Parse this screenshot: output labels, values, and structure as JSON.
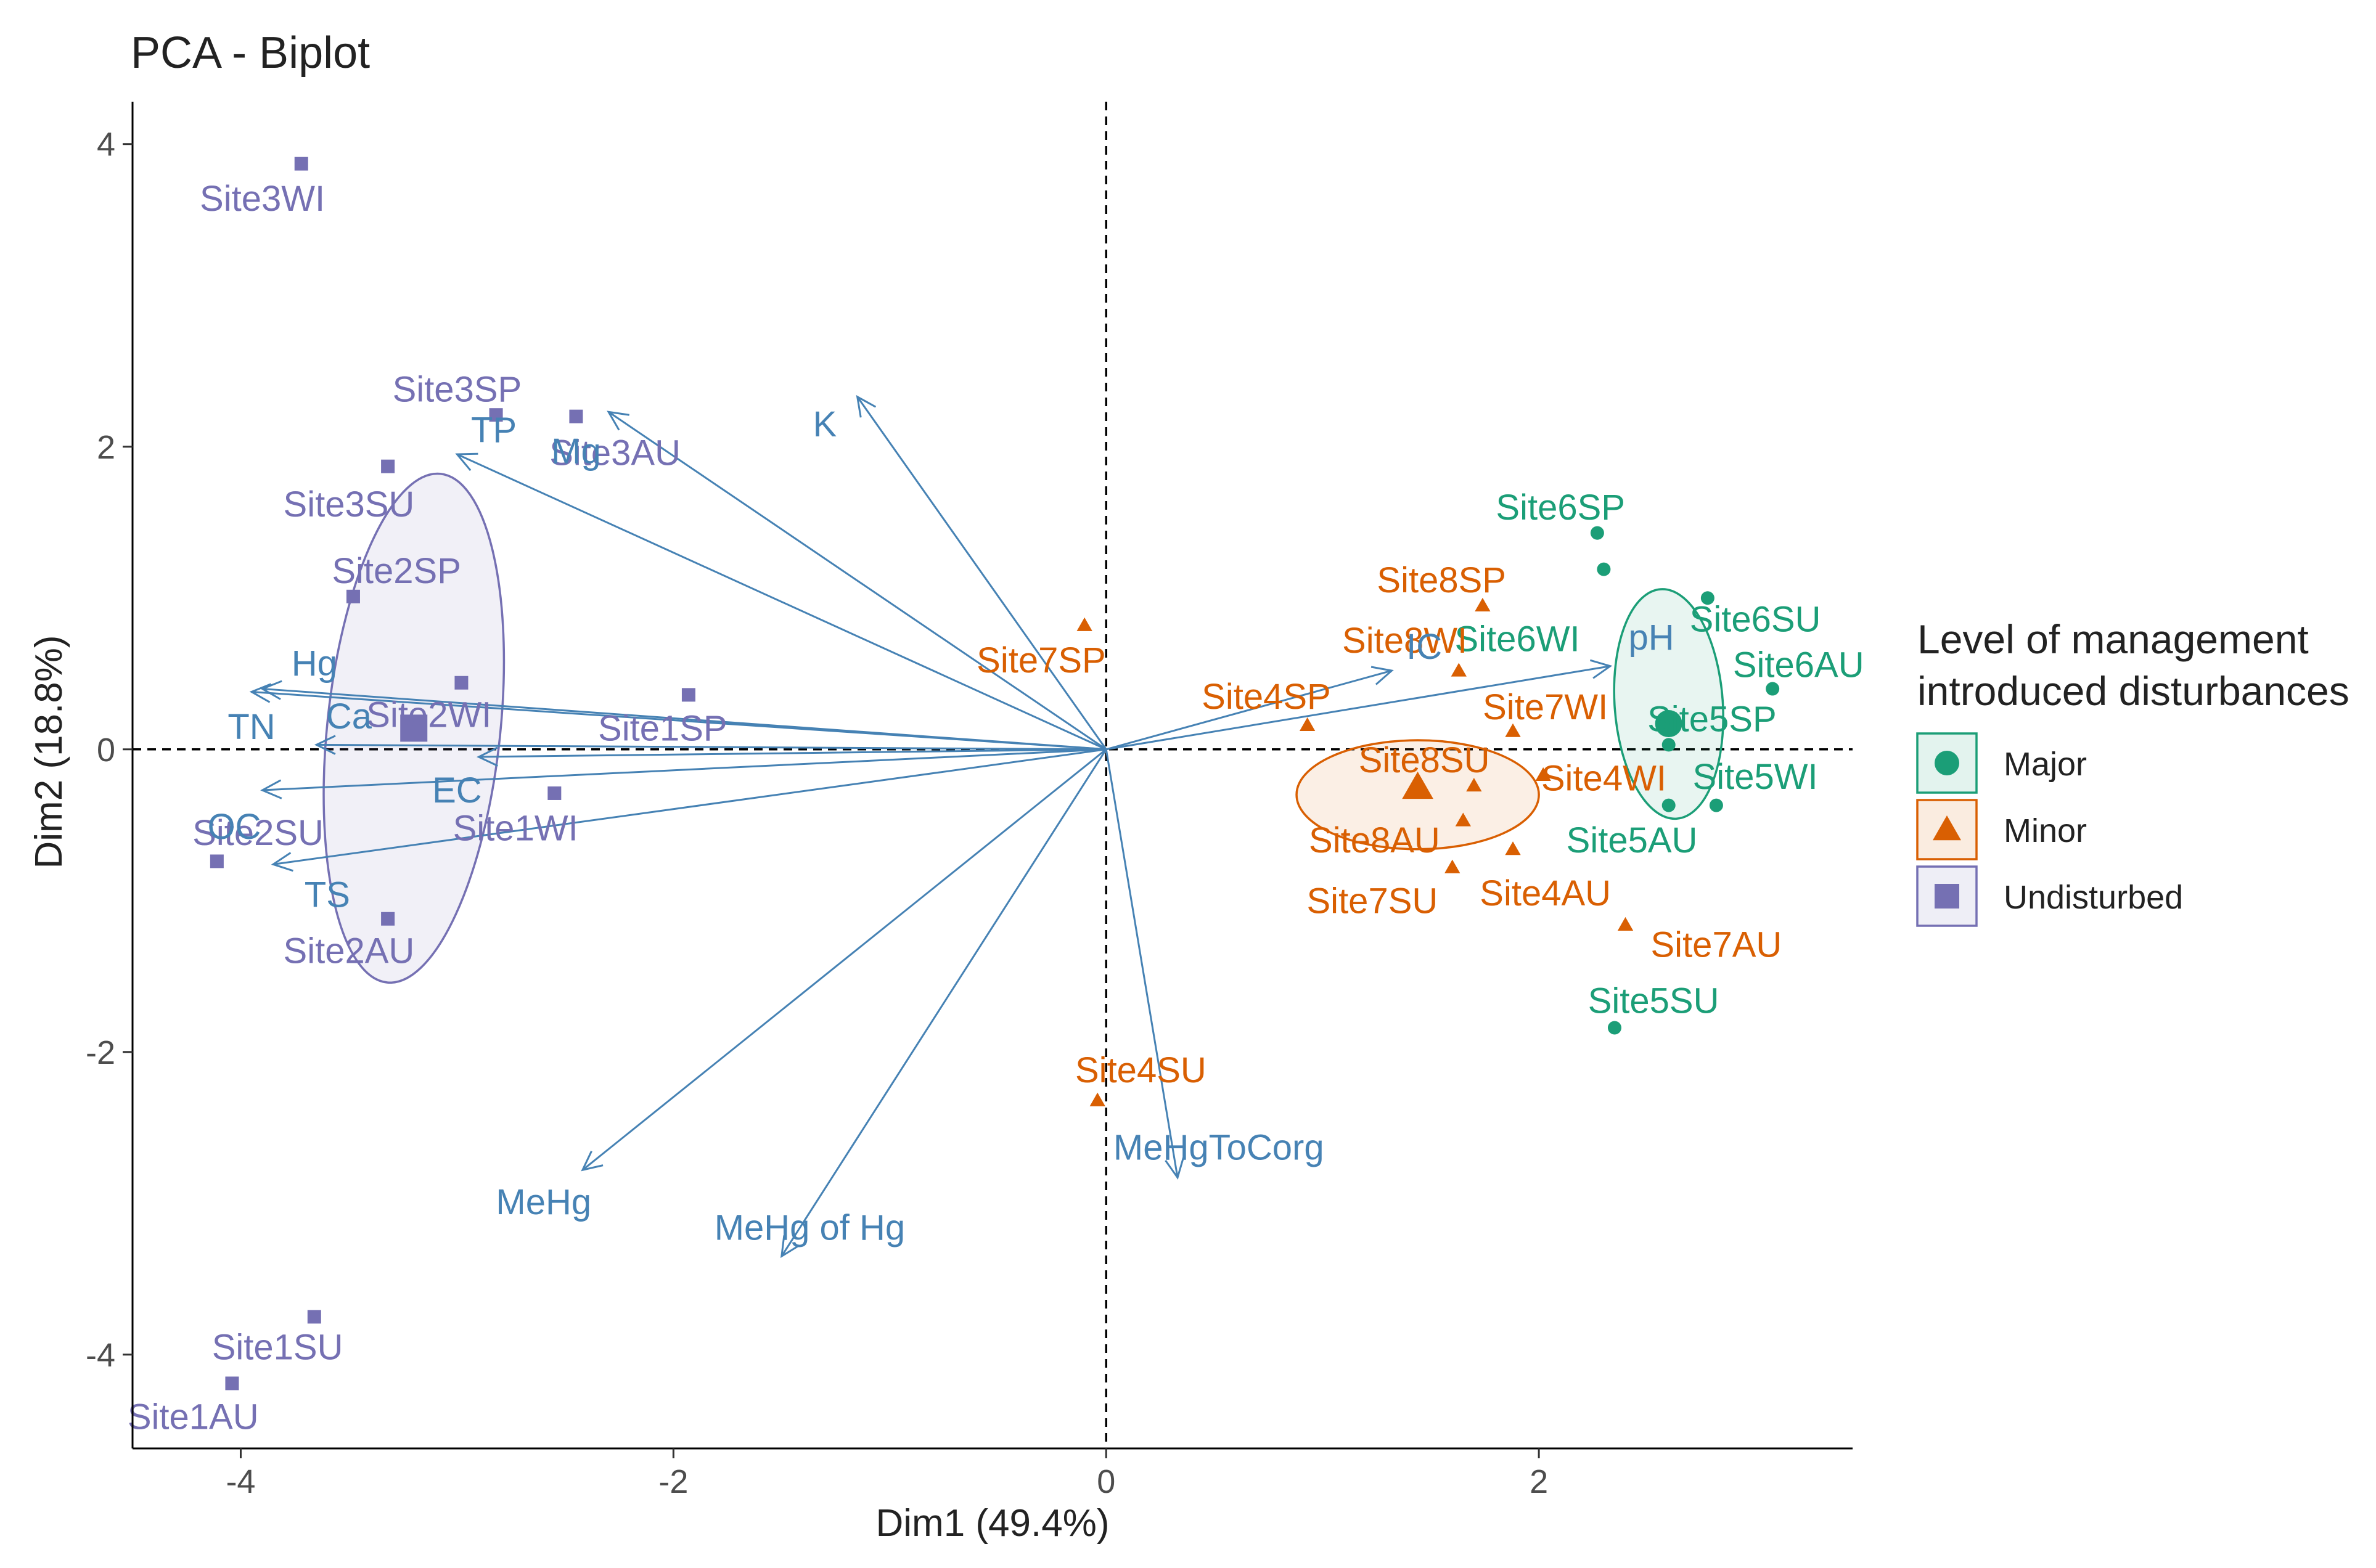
{
  "chart_data": {
    "type": "scatter",
    "title": "PCA - Biplot",
    "xlabel": "Dim1 (49.4%)",
    "ylabel": "Dim2 (18.8%)",
    "xlim": [
      -4.5,
      3.45
    ],
    "ylim": [
      -4.62,
      4.28
    ],
    "xticks": [
      -4,
      -2,
      0,
      2
    ],
    "yticks": [
      -4,
      -2,
      0,
      2,
      4
    ],
    "grid": false,
    "legend_position": "right",
    "legend": {
      "title_lines": [
        "Level of management",
        "introduced disturbances"
      ],
      "entries": [
        {
          "name": "Major",
          "color": "#1b9e77",
          "shape": "circle"
        },
        {
          "name": "Minor",
          "color": "#d95f02",
          "shape": "triangle"
        },
        {
          "name": "Undisturbed",
          "color": "#7570b3",
          "shape": "square"
        }
      ]
    },
    "groups": [
      {
        "name": "Major",
        "color": "#1b9e77",
        "shape": "circle",
        "centroid": [
          2.6,
          0.17
        ],
        "ellipse": {
          "center": [
            2.6,
            0.3
          ],
          "rx": 0.25,
          "ry": 0.76,
          "angle": -4
        },
        "points": [
          {
            "label": "Site6SP",
            "x": 2.27,
            "y": 1.43,
            "lx": 2.1,
            "ly": 1.6
          },
          {
            "label": "Site6WI",
            "x": 2.3,
            "y": 1.19,
            "lx": 1.9,
            "ly": 0.73
          },
          {
            "label": "Site6SU",
            "x": 2.78,
            "y": 1.0,
            "lx": 3.0,
            "ly": 0.86
          },
          {
            "label": "Site6AU",
            "x": 3.08,
            "y": 0.4,
            "lx": 3.2,
            "ly": 0.56
          },
          {
            "label": "Site5SP",
            "x": 2.6,
            "y": 0.03,
            "lx": 2.8,
            "ly": 0.2
          },
          {
            "label": "Site5WI",
            "x": 2.82,
            "y": -0.37,
            "lx": 3.0,
            "ly": -0.18
          },
          {
            "label": "Site5AU",
            "x": 2.6,
            "y": -0.37,
            "lx": 2.43,
            "ly": -0.6
          },
          {
            "label": "Site5SU",
            "x": 2.35,
            "y": -1.84,
            "lx": 2.53,
            "ly": -1.66
          }
        ]
      },
      {
        "name": "Minor",
        "color": "#d95f02",
        "shape": "triangle",
        "centroid": [
          1.44,
          -0.25
        ],
        "ellipse": {
          "center": [
            1.44,
            -0.3
          ],
          "rx": 0.56,
          "ry": 0.36,
          "angle": 0
        },
        "points": [
          {
            "label": "Site7SP",
            "x": -0.1,
            "y": 0.82,
            "lx": -0.3,
            "ly": 0.59
          },
          {
            "label": "Site8SP",
            "x": 1.74,
            "y": 0.95,
            "lx": 1.55,
            "ly": 1.12
          },
          {
            "label": "Site8WI",
            "x": 1.63,
            "y": 0.52,
            "lx": 1.38,
            "ly": 0.72
          },
          {
            "label": "Site4SP",
            "x": 0.93,
            "y": 0.16,
            "lx": 0.74,
            "ly": 0.35
          },
          {
            "label": "Site7WI",
            "x": 1.88,
            "y": 0.12,
            "lx": 2.03,
            "ly": 0.28
          },
          {
            "label": "Site8SU",
            "x": 1.7,
            "y": -0.24,
            "lx": 1.47,
            "ly": -0.07
          },
          {
            "label": "Site4WI",
            "x": 2.02,
            "y": -0.17,
            "lx": 2.3,
            "ly": -0.19
          },
          {
            "label": "Site8AU",
            "x": 1.65,
            "y": -0.47,
            "lx": 1.24,
            "ly": -0.6
          },
          {
            "label": "Site7SU",
            "x": 1.6,
            "y": -0.78,
            "lx": 1.23,
            "ly": -1.0
          },
          {
            "label": "Site4AU",
            "x": 1.88,
            "y": -0.66,
            "lx": 2.03,
            "ly": -0.95
          },
          {
            "label": "Site7AU",
            "x": 2.4,
            "y": -1.16,
            "lx": 2.82,
            "ly": -1.29
          },
          {
            "label": "Site4SU",
            "x": -0.04,
            "y": -2.32,
            "lx": 0.16,
            "ly": -2.12
          }
        ]
      },
      {
        "name": "Undisturbed",
        "color": "#7570b3",
        "shape": "square",
        "centroid": [
          -3.2,
          0.14
        ],
        "ellipse": {
          "center": [
            -3.2,
            0.14
          ],
          "rx": 0.4,
          "ry": 1.69,
          "angle": 6
        },
        "points": [
          {
            "label": "Site3WI",
            "x": -3.72,
            "y": 3.87,
            "lx": -3.9,
            "ly": 3.64
          },
          {
            "label": "Site3SP",
            "x": -2.82,
            "y": 2.21,
            "lx": -3.0,
            "ly": 2.38
          },
          {
            "label": "Site3AU",
            "x": -2.45,
            "y": 2.2,
            "lx": -2.27,
            "ly": 1.96
          },
          {
            "label": "Site3SU",
            "x": -3.32,
            "y": 1.87,
            "lx": -3.5,
            "ly": 1.62
          },
          {
            "label": "Site2SP",
            "x": -3.48,
            "y": 1.01,
            "lx": -3.28,
            "ly": 1.18
          },
          {
            "label": "Site2WI",
            "x": -2.98,
            "y": 0.44,
            "lx": -3.13,
            "ly": 0.23
          },
          {
            "label": "Site1SP",
            "x": -1.93,
            "y": 0.36,
            "lx": -2.05,
            "ly": 0.14
          },
          {
            "label": "Site1WI",
            "x": -2.55,
            "y": -0.29,
            "lx": -2.73,
            "ly": -0.52
          },
          {
            "label": "Site2SU",
            "x": -4.11,
            "y": -0.74,
            "lx": -3.92,
            "ly": -0.55
          },
          {
            "label": "Site2AU",
            "x": -3.32,
            "y": -1.12,
            "lx": -3.5,
            "ly": -1.33
          },
          {
            "label": "Site1SU",
            "x": -3.66,
            "y": -3.75,
            "lx": -3.83,
            "ly": -3.95
          },
          {
            "label": "Site1AU",
            "x": -4.04,
            "y": -4.19,
            "lx": -4.22,
            "ly": -4.41
          }
        ]
      }
    ],
    "variables": {
      "color": "#4682b4",
      "arrows": [
        {
          "label": "TP",
          "x": -3.0,
          "y": 1.95,
          "lx": -2.83,
          "ly": 2.11
        },
        {
          "label": "Mg",
          "x": -2.3,
          "y": 2.23,
          "lx": -2.45,
          "ly": 1.97
        },
        {
          "label": "K",
          "x": -1.15,
          "y": 2.33,
          "lx": -1.3,
          "ly": 2.15
        },
        {
          "label": "Hg",
          "x": -3.9,
          "y": 0.4,
          "lx": -3.66,
          "ly": 0.57
        },
        {
          "label": "TN",
          "x": -3.95,
          "y": 0.38,
          "lx": -3.95,
          "ly": 0.15
        },
        {
          "label": "Ca",
          "x": -3.65,
          "y": 0.03,
          "lx": -3.5,
          "ly": 0.22
        },
        {
          "label": "EC",
          "x": -2.9,
          "y": -0.05,
          "lx": -3.0,
          "ly": -0.27
        },
        {
          "label": "OC",
          "x": -3.9,
          "y": -0.27,
          "lx": -4.03,
          "ly": -0.51
        },
        {
          "label": "TS",
          "x": -3.85,
          "y": -0.76,
          "lx": -3.6,
          "ly": -0.96
        },
        {
          "label": "MeHg",
          "x": -2.42,
          "y": -2.78,
          "lx": -2.6,
          "ly": -2.99
        },
        {
          "label": "MeHg of Hg",
          "x": -1.5,
          "y": -3.35,
          "lx": -1.37,
          "ly": -3.16
        },
        {
          "label": "MeHgToCorg",
          "x": 0.33,
          "y": -2.83,
          "lx": 0.52,
          "ly": -2.63
        },
        {
          "label": "IC",
          "x": 1.32,
          "y": 0.52,
          "lx": 1.47,
          "ly": 0.68
        },
        {
          "label": "pH",
          "x": 2.33,
          "y": 0.55,
          "lx": 2.52,
          "ly": 0.74
        }
      ]
    }
  }
}
